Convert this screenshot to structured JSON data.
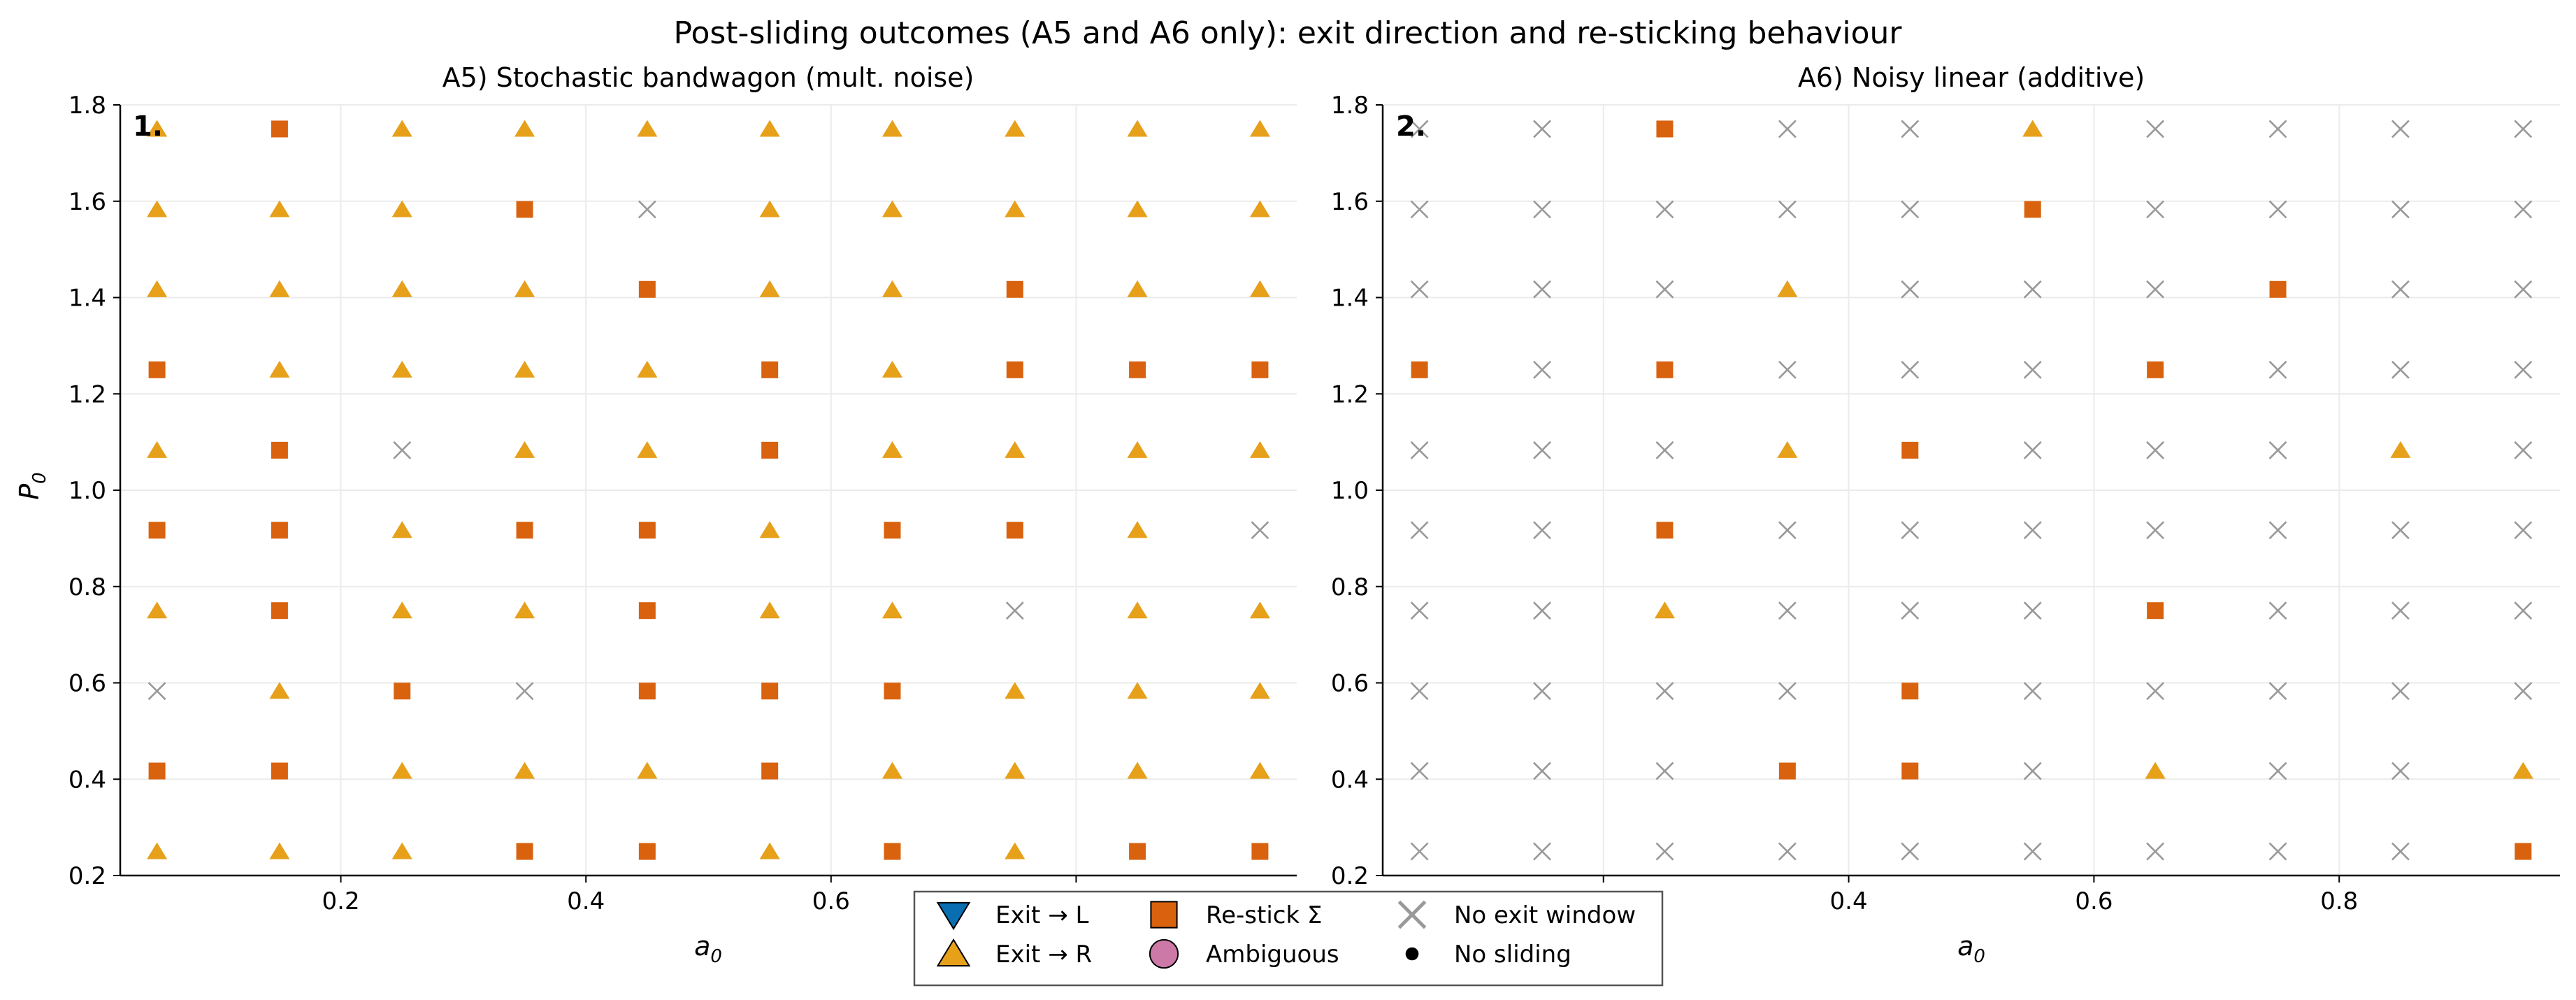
{
  "figure": {
    "title": "Post-sliding outcomes (A5 and A6 only): exit direction and re-sticking behaviour"
  },
  "colors": {
    "exit_L": "#0a6eb3",
    "exit_R": "#e6a01a",
    "restick": "#d9620f",
    "ambiguous": "#cc79a7",
    "no_exit": "#999999",
    "no_sliding": "#000000",
    "grid": "#ebebeb"
  },
  "legend": {
    "placement": "bottom-center",
    "items": [
      {
        "key": "exit_L",
        "label": "Exit → L",
        "marker": "triangle-down"
      },
      {
        "key": "exit_R",
        "label": "Exit → R",
        "marker": "triangle-up"
      },
      {
        "key": "restick",
        "label": "Re-stick Σ",
        "marker": "square"
      },
      {
        "key": "ambiguous",
        "label": "Ambiguous",
        "marker": "circle"
      },
      {
        "key": "no_exit",
        "label": "No exit window",
        "marker": "x"
      },
      {
        "key": "no_sliding",
        "label": "No sliding",
        "marker": "dot"
      }
    ]
  },
  "chart_data": [
    {
      "type": "scatter",
      "panel_label": "1.",
      "title": "A5) Stochastic bandwagon (mult. noise)",
      "xlabel": "a0",
      "ylabel": "P0",
      "xlim": [
        0.02,
        0.98
      ],
      "ylim": [
        0.2,
        1.8
      ],
      "xticks": [
        0.2,
        0.4,
        0.6,
        0.8
      ],
      "yticks": [
        0.2,
        0.4,
        0.6,
        0.8,
        1.0,
        1.2,
        1.4,
        1.6,
        1.8
      ],
      "grid": true,
      "x": [
        0.05,
        0.15,
        0.25,
        0.35,
        0.45,
        0.55,
        0.65,
        0.75,
        0.85,
        0.95
      ],
      "y": [
        1.75,
        1.583,
        1.417,
        1.25,
        1.083,
        0.917,
        0.75,
        0.583,
        0.417,
        0.25
      ],
      "outcomes": [
        "RSRRRRRRRR",
        "RRRSXRRRRR",
        "RRRRSRRSRR",
        "SRRRRSRSSS",
        "RSXRRSRRRR",
        "SSRSSRSSRX",
        "RSRRSRRXRR",
        "XRSXSSSRRR",
        "SSRRRSRRRR",
        "RRRSSRSRSS"
      ]
    },
    {
      "type": "scatter",
      "panel_label": "2.",
      "title": "A6) Noisy linear (additive)",
      "xlabel": "a0",
      "ylabel": "",
      "xlim": [
        0.02,
        0.98
      ],
      "ylim": [
        0.2,
        1.8
      ],
      "xticks": [
        0.2,
        0.4,
        0.6,
        0.8
      ],
      "yticks": [
        0.2,
        0.4,
        0.6,
        0.8,
        1.0,
        1.2,
        1.4,
        1.6,
        1.8
      ],
      "grid": true,
      "x": [
        0.05,
        0.15,
        0.25,
        0.35,
        0.45,
        0.55,
        0.65,
        0.75,
        0.85,
        0.95
      ],
      "y": [
        1.75,
        1.583,
        1.417,
        1.25,
        1.083,
        0.917,
        0.75,
        0.583,
        0.417,
        0.25
      ],
      "outcomes": [
        "XXSXXRXXXX",
        "XXXXXSXXXX",
        "XXXRXXXSXX",
        "SXSXXXSXXX",
        "XXXRSXXXRX",
        "XXSXXXXXXX",
        "XXRXXXSXXX",
        "XXXXSXXXXX",
        "XXXSSXRXXR",
        "XXXXXXXXXS"
      ]
    }
  ]
}
